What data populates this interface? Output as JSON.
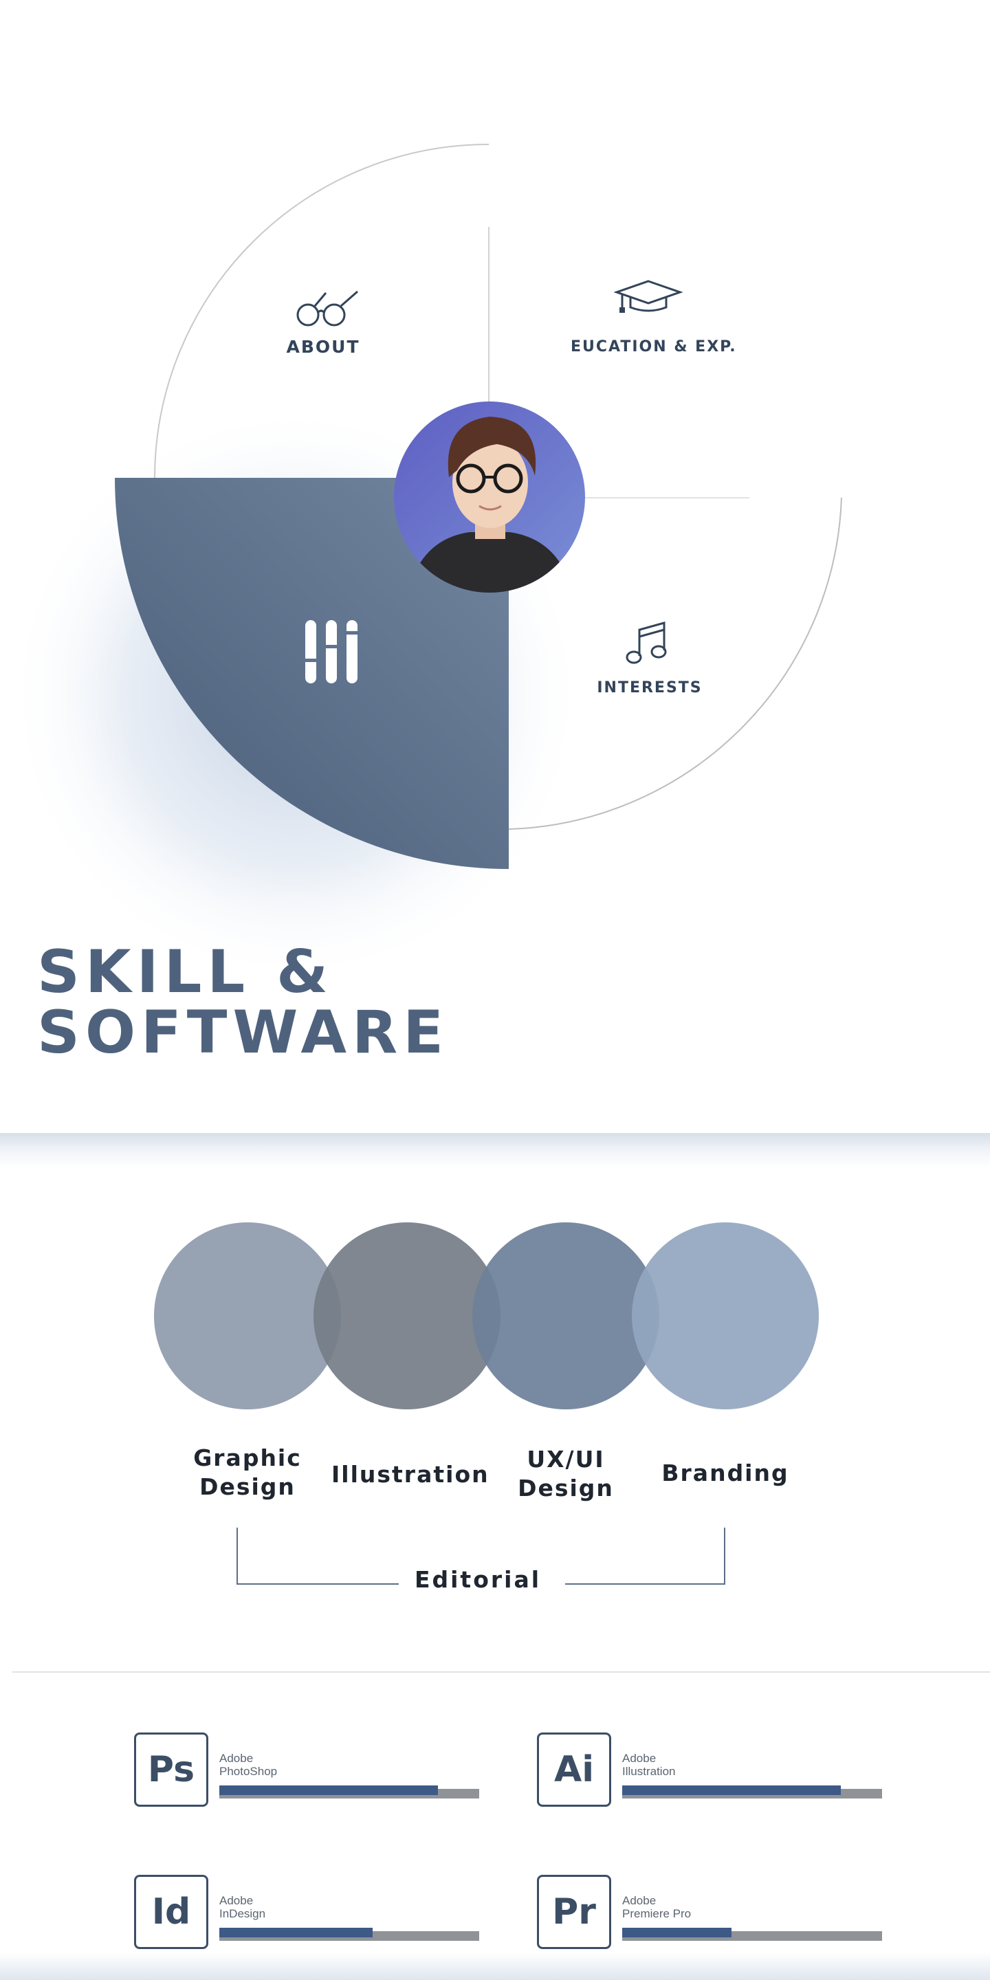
{
  "menu": {
    "about_label": "ABOUT",
    "education_label": "EUCATION & EXP.",
    "interests_label": "INTERESTS",
    "active_segment": "skills",
    "active_color": "#5a6d87",
    "icons": {
      "about": "glasses-icon",
      "education": "graduation-cap-icon",
      "interests": "music-note-icon",
      "skills": "sliders-icon"
    }
  },
  "section_title": {
    "line1": "SKILL &",
    "line2": "SOFTWARE"
  },
  "skills": {
    "items": [
      {
        "label_line1": "Graphic",
        "label_line2": "Design",
        "color": "#8e9aab"
      },
      {
        "label_line1": "Illustration",
        "label_line2": "",
        "color": "#757d88"
      },
      {
        "label_line1": "UX/UI",
        "label_line2": "Design",
        "color": "#6c8099"
      },
      {
        "label_line1": "Branding",
        "label_line2": "",
        "color": "#93a6bf"
      }
    ],
    "bracket_label": "Editorial"
  },
  "software": [
    {
      "abbr": "Ps",
      "vendor": "Adobe",
      "name": "PhotoShop",
      "level": 0.84
    },
    {
      "abbr": "Ai",
      "vendor": "Adobe",
      "name": "Illustration",
      "level": 0.84
    },
    {
      "abbr": "Id",
      "vendor": "Adobe",
      "name": "InDesign",
      "level": 0.59
    },
    {
      "abbr": "Pr",
      "vendor": "Adobe",
      "name": "Premiere Pro",
      "level": 0.42
    }
  ]
}
